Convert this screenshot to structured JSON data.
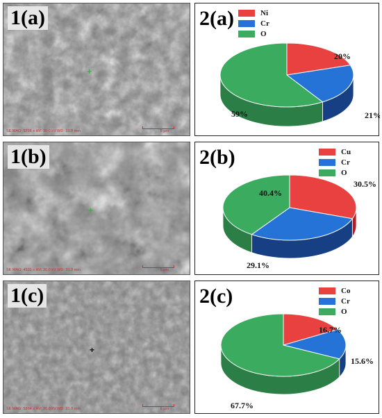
{
  "colors": {
    "red": "#e8413f",
    "red_side": "#b02020",
    "blue": "#2573d6",
    "blue_side": "#173f84",
    "green": "#3aab5f",
    "green_side": "#2b7e45"
  },
  "sem_panels": [
    {
      "label": "1(a)",
      "info": "SE  MAG: 5798 x  HV: 30.0 kV  WD: 31.9 mm",
      "scale": "5 µm"
    },
    {
      "label": "1(b)",
      "info": "SE  MAG: 4531 x  HV: 30.0 kV  WD: 31.9 mm",
      "scale": "5 µm"
    },
    {
      "label": "1(c)",
      "info": "SE  MAG: 5864 x  HV: 30.0 kV  WD: 31.9 mm",
      "scale": "6 µm"
    }
  ],
  "chart_data": [
    {
      "type": "pie",
      "label": "2(a)",
      "categories": [
        "Ni",
        "Cr",
        "O"
      ],
      "values": [
        20,
        21,
        59
      ],
      "value_labels": [
        "20%",
        "21%",
        "59%"
      ],
      "colors": [
        "#e8413f",
        "#2573d6",
        "#3aab5f"
      ],
      "style": "3d",
      "legend": "top-left"
    },
    {
      "type": "pie",
      "label": "2(b)",
      "categories": [
        "Cu",
        "Cr",
        "O"
      ],
      "values": [
        30.5,
        29.1,
        40.4
      ],
      "value_labels": [
        "30.5%",
        "29.1%",
        "40.4%"
      ],
      "colors": [
        "#e8413f",
        "#2573d6",
        "#3aab5f"
      ],
      "style": "3d",
      "legend": "top-right"
    },
    {
      "type": "pie",
      "label": "2(c)",
      "categories": [
        "Co",
        "Cr",
        "O"
      ],
      "values": [
        16.7,
        15.6,
        67.7
      ],
      "value_labels": [
        "16.7%",
        "15.6%",
        "67.7%"
      ],
      "colors": [
        "#e8413f",
        "#2573d6",
        "#3aab5f"
      ],
      "style": "3d",
      "legend": "top-right"
    }
  ]
}
